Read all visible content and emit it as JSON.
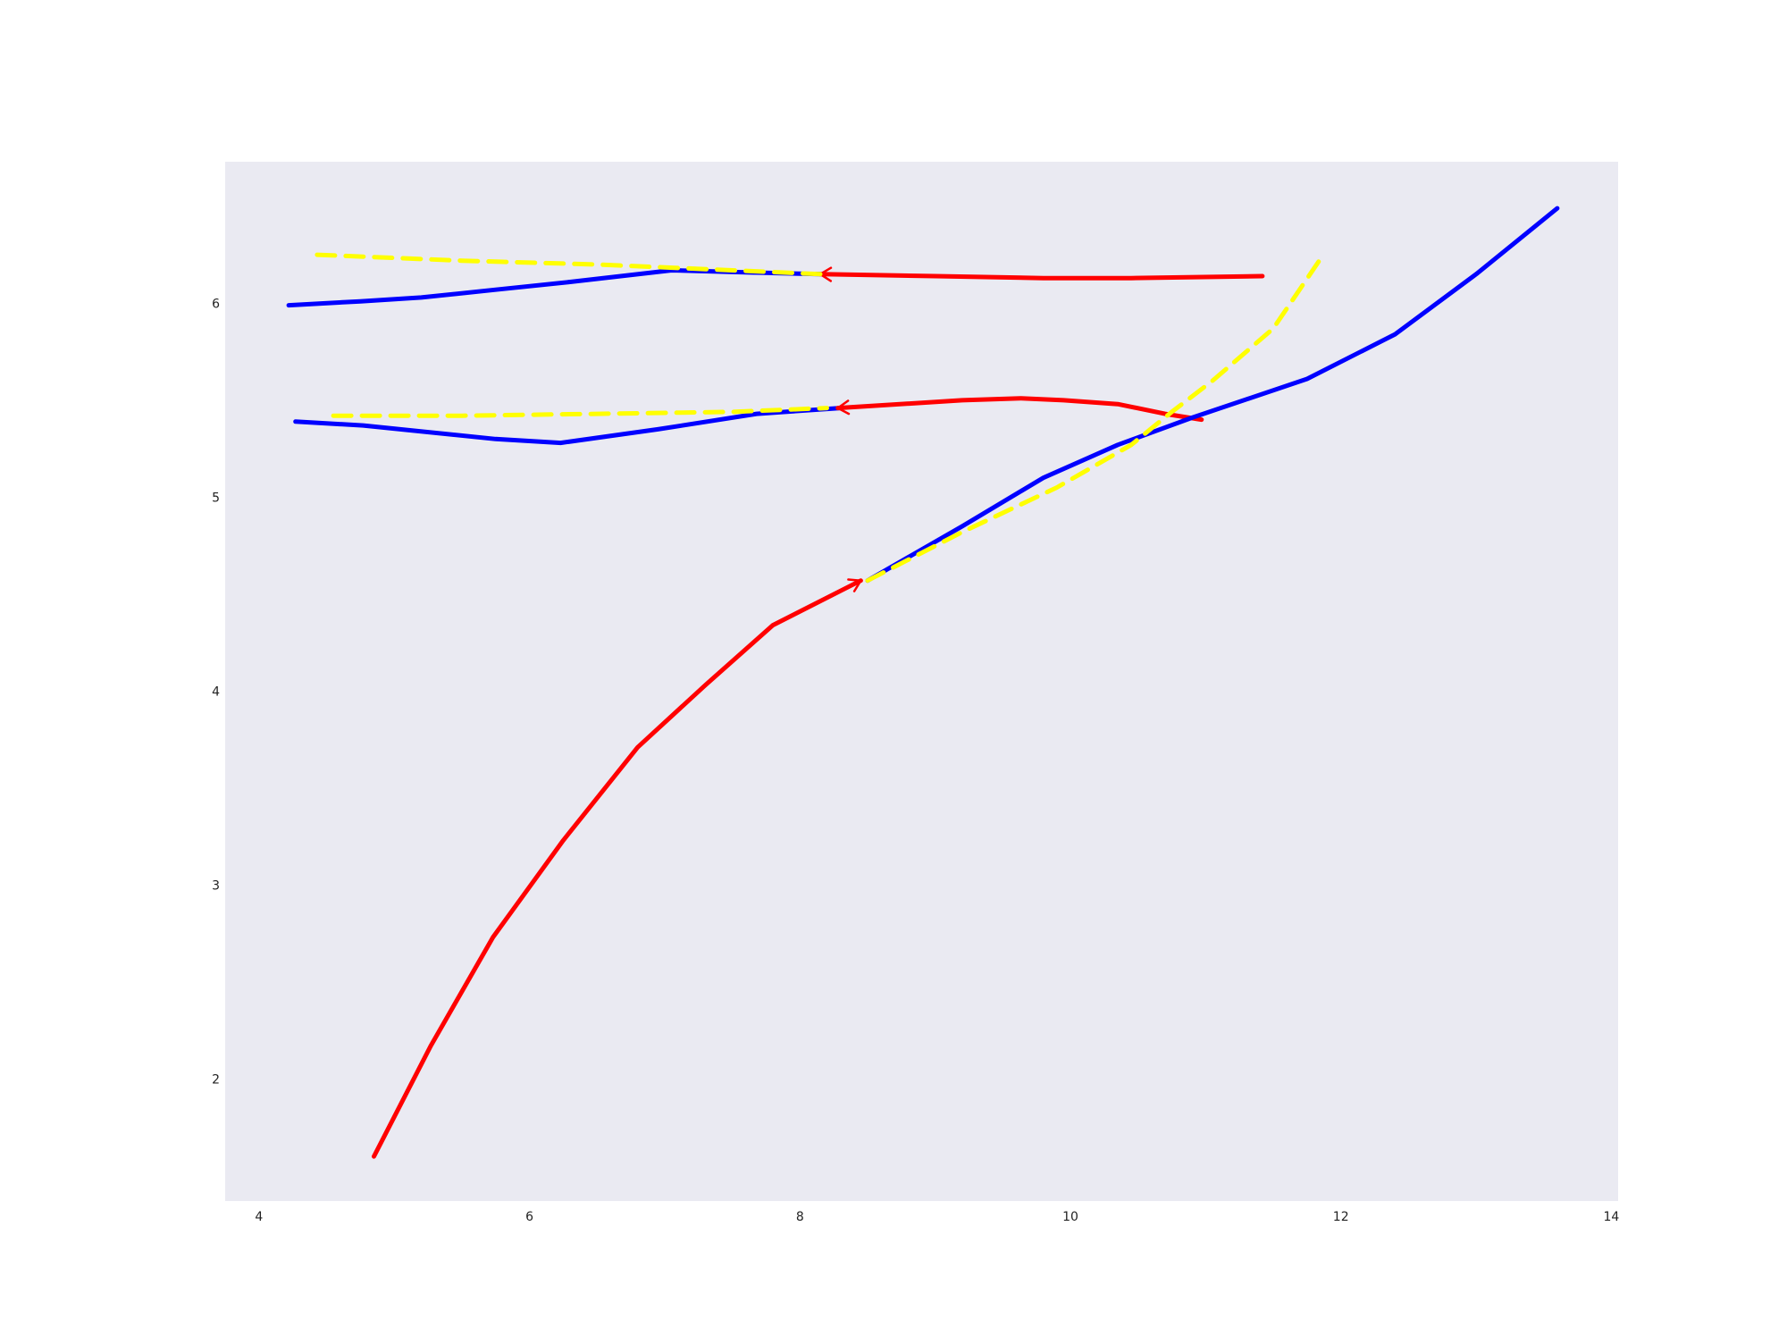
{
  "chart_data": {
    "type": "line",
    "title": "",
    "xlabel": "",
    "ylabel": "",
    "xlim": [
      3.75,
      14.05
    ],
    "ylim": [
      1.37,
      6.73
    ],
    "grid": false,
    "legend": "none",
    "colors": {
      "plot_background": "#eaeaf2",
      "page_background": "#ffffff",
      "observed": "#0000ff",
      "forecast": "#ff0000",
      "trend": "#ffff00",
      "tick_text": "#222222"
    },
    "x_ticks": [
      {
        "value": 4,
        "label": "4"
      },
      {
        "value": 6,
        "label": "6"
      },
      {
        "value": 8,
        "label": "8"
      },
      {
        "value": 10,
        "label": "10"
      },
      {
        "value": 12,
        "label": "12"
      },
      {
        "value": 14,
        "label": "14"
      }
    ],
    "y_ticks": [
      {
        "value": 2,
        "label": "2"
      },
      {
        "value": 3,
        "label": "3"
      },
      {
        "value": 4,
        "label": "4"
      },
      {
        "value": 5,
        "label": "5"
      },
      {
        "value": 6,
        "label": "6"
      }
    ],
    "series": [
      {
        "name": "upper-observed",
        "role": "observed",
        "style": "solid",
        "points": [
          [
            4.22,
            5.99
          ],
          [
            4.75,
            6.01
          ],
          [
            5.2,
            6.03
          ],
          [
            5.75,
            6.07
          ],
          [
            6.3,
            6.11
          ],
          [
            7.05,
            6.17
          ],
          [
            7.6,
            6.16
          ],
          [
            8.15,
            6.15
          ]
        ]
      },
      {
        "name": "upper-trend",
        "role": "trend",
        "style": "dashed",
        "points": [
          [
            4.43,
            6.25
          ],
          [
            5.5,
            6.22
          ],
          [
            6.5,
            6.2
          ],
          [
            7.5,
            6.17
          ],
          [
            8.15,
            6.15
          ]
        ]
      },
      {
        "name": "upper-forecast",
        "role": "forecast",
        "style": "solid",
        "arrow_at": "start",
        "points": [
          [
            8.15,
            6.15
          ],
          [
            9.0,
            6.14
          ],
          [
            9.8,
            6.13
          ],
          [
            10.45,
            6.13
          ],
          [
            11.42,
            6.14
          ]
        ]
      },
      {
        "name": "middle-observed",
        "role": "observed",
        "style": "solid",
        "points": [
          [
            4.27,
            5.39
          ],
          [
            4.77,
            5.37
          ],
          [
            5.75,
            5.3
          ],
          [
            6.23,
            5.28
          ],
          [
            6.95,
            5.35
          ],
          [
            7.68,
            5.43
          ],
          [
            8.3,
            5.46
          ]
        ]
      },
      {
        "name": "middle-trend",
        "role": "trend",
        "style": "dashed",
        "points": [
          [
            4.55,
            5.42
          ],
          [
            5.5,
            5.42
          ],
          [
            6.5,
            5.43
          ],
          [
            7.5,
            5.44
          ],
          [
            8.2,
            5.46
          ]
        ]
      },
      {
        "name": "middle-forecast",
        "role": "forecast",
        "style": "solid",
        "arrow_at": "start",
        "points": [
          [
            8.28,
            5.46
          ],
          [
            9.2,
            5.5
          ],
          [
            9.63,
            5.51
          ],
          [
            9.95,
            5.5
          ],
          [
            10.35,
            5.48
          ],
          [
            10.7,
            5.43
          ],
          [
            10.97,
            5.4
          ]
        ]
      },
      {
        "name": "lower-forecast",
        "role": "forecast",
        "style": "solid",
        "arrow_at": "end",
        "points": [
          [
            4.85,
            1.6
          ],
          [
            5.27,
            2.17
          ],
          [
            5.73,
            2.73
          ],
          [
            6.25,
            3.23
          ],
          [
            6.8,
            3.71
          ],
          [
            7.3,
            4.03
          ],
          [
            7.8,
            4.34
          ],
          [
            8.45,
            4.57
          ]
        ]
      },
      {
        "name": "lower-observed",
        "role": "observed",
        "style": "solid",
        "points": [
          [
            8.5,
            4.57
          ],
          [
            9.2,
            4.85
          ],
          [
            9.8,
            5.1
          ],
          [
            10.35,
            5.27
          ],
          [
            10.9,
            5.41
          ],
          [
            11.75,
            5.61
          ],
          [
            12.4,
            5.84
          ],
          [
            13.0,
            6.15
          ],
          [
            13.6,
            6.49
          ]
        ]
      },
      {
        "name": "lower-trend",
        "role": "trend",
        "style": "dashed",
        "points": [
          [
            8.5,
            4.57
          ],
          [
            9.2,
            4.82
          ],
          [
            9.9,
            5.05
          ],
          [
            10.45,
            5.27
          ],
          [
            10.75,
            5.44
          ],
          [
            11.05,
            5.6
          ],
          [
            11.5,
            5.87
          ],
          [
            11.85,
            6.23
          ]
        ]
      }
    ]
  }
}
